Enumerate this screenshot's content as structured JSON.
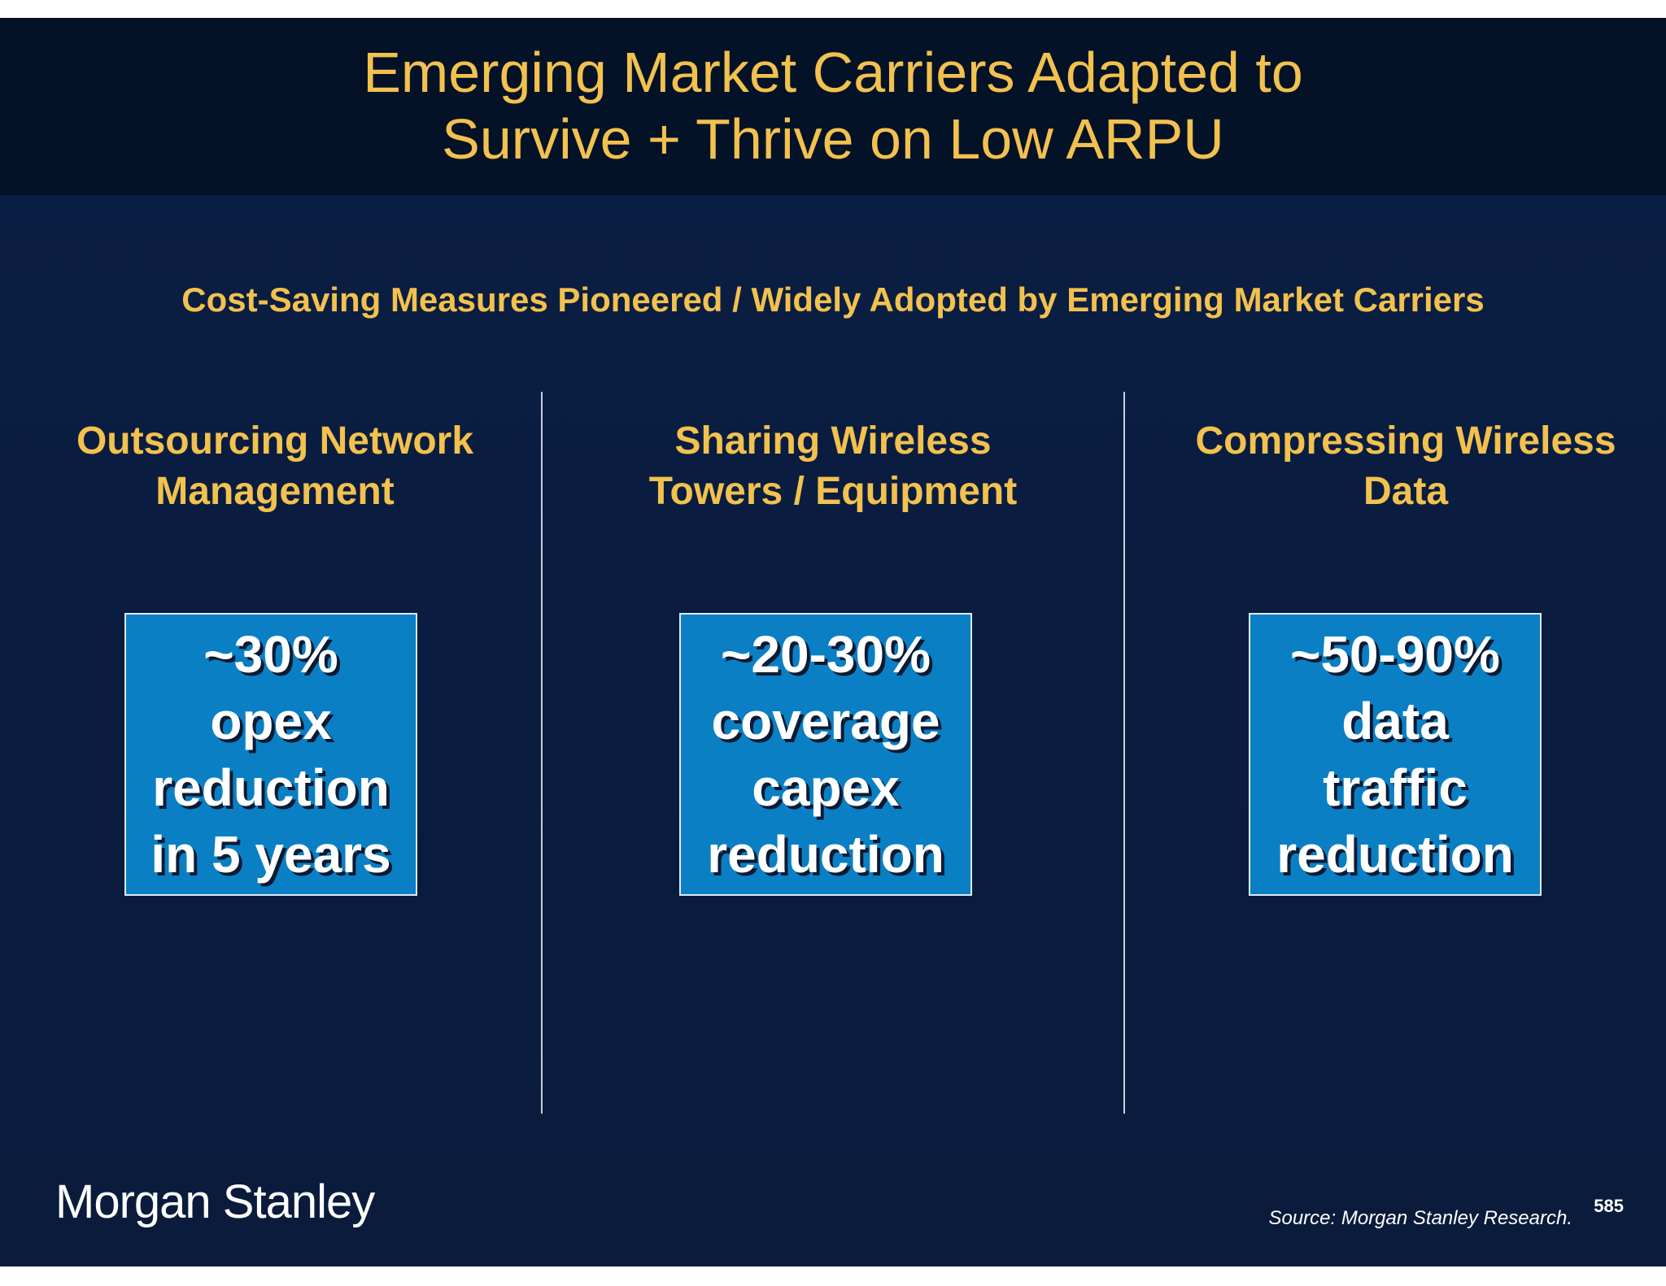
{
  "slide": {
    "title_lines": [
      "Emerging Market Carriers Adapted to",
      "Survive + Thrive on Low ARPU"
    ],
    "subtitle": "Cost-Saving Measures Pioneered / Widely Adopted by Emerging Market Carriers",
    "columns": [
      {
        "heading_lines": [
          "Outsourcing Network",
          "Management"
        ],
        "stat_lines": [
          "~30%",
          "opex",
          "reduction",
          "in 5 years"
        ]
      },
      {
        "heading_lines": [
          "Sharing Wireless",
          "Towers / Equipment"
        ],
        "stat_lines": [
          "~20-30%",
          "coverage",
          "capex",
          "reduction"
        ]
      },
      {
        "heading_lines": [
          "Compressing Wireless",
          "Data"
        ],
        "stat_lines": [
          "~50-90%",
          "data",
          "traffic",
          "reduction"
        ]
      }
    ]
  },
  "footer": {
    "logo_text": "Morgan Stanley",
    "source": "Source: Morgan Stanley Research.",
    "page_number": "585"
  },
  "colors": {
    "background": "#0b1f44",
    "title_band": "#041228",
    "accent_gold": "#f2c14e",
    "stat_box": "#0a7fc4"
  }
}
